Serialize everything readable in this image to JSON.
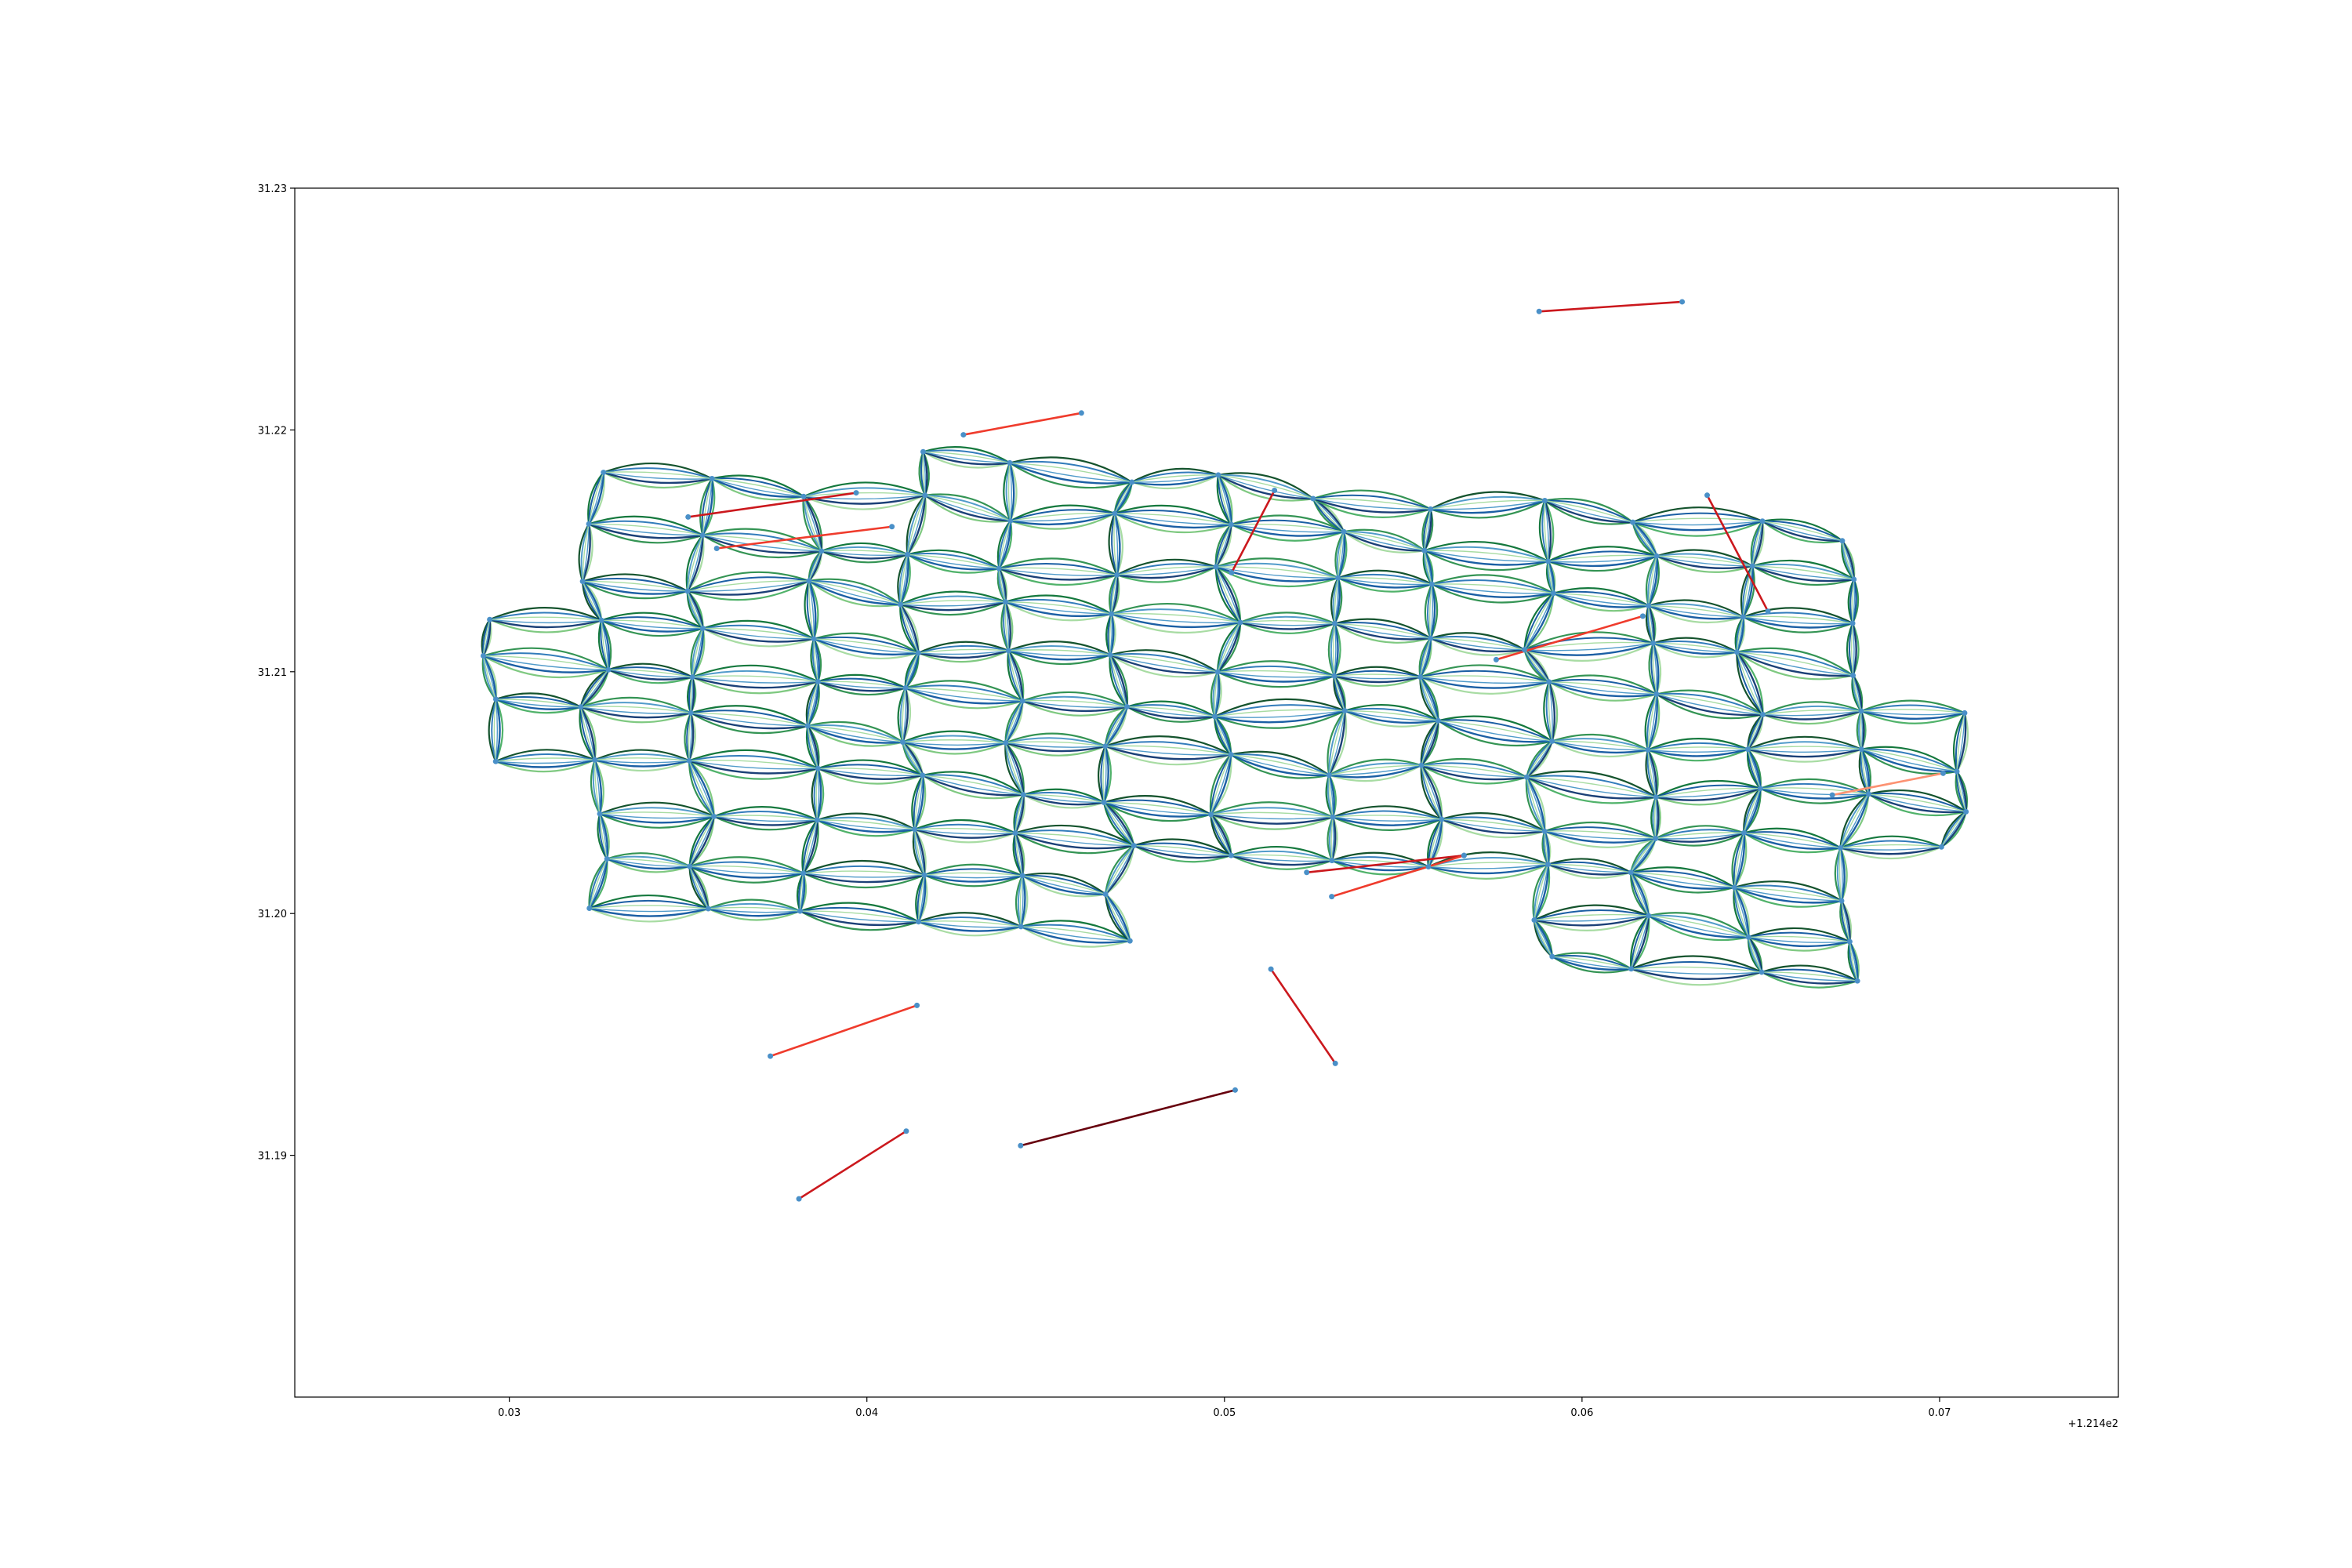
{
  "chart_data": {
    "type": "line",
    "title": "",
    "xlabel": "",
    "ylabel": "",
    "x_offset_label": "+1.214e2",
    "xlim": [
      0.024,
      0.075
    ],
    "ylim": [
      31.18,
      31.23
    ],
    "x_ticks": [
      0.03,
      0.04,
      0.05,
      0.06,
      0.07
    ],
    "x_tick_labels": [
      "0.03",
      "0.04",
      "0.05",
      "0.06",
      "0.07"
    ],
    "y_ticks": [
      31.19,
      31.2,
      31.21,
      31.22,
      31.23
    ],
    "y_tick_labels": [
      "31.19",
      "31.20",
      "31.21",
      "31.22",
      "31.23"
    ],
    "grid": false,
    "legend": "none",
    "node_color": "#4a90c8",
    "edge_palette": [
      "#08306b",
      "#08519c",
      "#2171b5",
      "#4292c6",
      "#00441b",
      "#006d2c",
      "#238b45",
      "#41ab5d",
      "#74c476",
      "#a1d99b",
      "#fc9272",
      "#ef3b2c",
      "#cb181d",
      "#67000d"
    ],
    "mesh": {
      "cols": 15,
      "rows": 11,
      "col_x_start": 0.0295,
      "col_x_end": 0.0705,
      "row0_y_start": 31.2095,
      "row0_y_end": 31.2052,
      "row_dy_start": 0.00195,
      "row_dy_end": 0.00185
    },
    "highlight_segments": [
      {
        "from": [
          0.035,
          31.2164
        ],
        "to": [
          0.0397,
          31.2174
        ],
        "color": "#cb181d"
      },
      {
        "from": [
          0.0358,
          31.2151
        ],
        "to": [
          0.0407,
          31.216
        ],
        "color": "#ef3b2c"
      },
      {
        "from": [
          0.0427,
          31.2198
        ],
        "to": [
          0.046,
          31.2207
        ],
        "color": "#ef3b2c"
      },
      {
        "from": [
          0.0588,
          31.2249
        ],
        "to": [
          0.0628,
          31.2253
        ],
        "color": "#cb181d"
      },
      {
        "from": [
          0.0635,
          31.2173
        ],
        "to": [
          0.0652,
          31.2125
        ],
        "color": "#cb181d"
      },
      {
        "from": [
          0.0576,
          31.2105
        ],
        "to": [
          0.0617,
          31.2123
        ],
        "color": "#ef3b2c"
      },
      {
        "from": [
          0.0523,
          31.2017
        ],
        "to": [
          0.0567,
          31.2024
        ],
        "color": "#cb181d"
      },
      {
        "from": [
          0.053,
          31.2007
        ],
        "to": [
          0.0567,
          31.2024
        ],
        "color": "#ef3b2c"
      },
      {
        "from": [
          0.0513,
          31.1977
        ],
        "to": [
          0.0531,
          31.1938
        ],
        "color": "#cb181d"
      },
      {
        "from": [
          0.0443,
          31.1904
        ],
        "to": [
          0.0503,
          31.1927
        ],
        "color": "#67000d"
      },
      {
        "from": [
          0.0373,
          31.1941
        ],
        "to": [
          0.0414,
          31.1962
        ],
        "color": "#ef3b2c"
      },
      {
        "from": [
          0.0381,
          31.1882
        ],
        "to": [
          0.0411,
          31.191
        ],
        "color": "#cb181d"
      },
      {
        "from": [
          0.0502,
          31.2141
        ],
        "to": [
          0.0514,
          31.2175
        ],
        "color": "#cb181d"
      },
      {
        "from": [
          0.067,
          31.2049
        ],
        "to": [
          0.0701,
          31.2058
        ],
        "color": "#fc9272"
      }
    ]
  }
}
